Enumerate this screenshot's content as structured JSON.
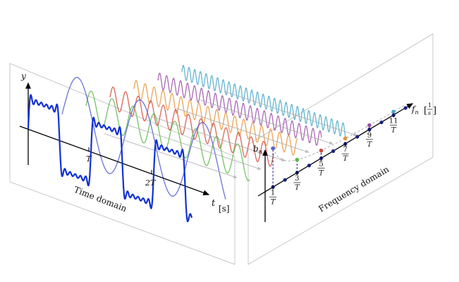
{
  "labels": {
    "y_axis": "y",
    "t_axis_var": "t",
    "t_axis_unit": "[s]",
    "time_tick_1": "T",
    "time_tick_2": "2T",
    "time_panel": "Time domain",
    "freq_panel": "Frequency domain",
    "b_axis": "b",
    "b_axis_sub": "n",
    "f_axis": "f",
    "f_axis_sub": "n",
    "f_unit_num": "1",
    "f_unit_den": "s"
  },
  "freq_ticks": [
    {
      "num": "1",
      "den": "T"
    },
    {
      "num": "3",
      "den": "T"
    },
    {
      "num": "5",
      "den": "T"
    },
    {
      "num": "7",
      "den": "T"
    },
    {
      "num": "9",
      "den": "T"
    },
    {
      "num": "11",
      "den": "T"
    }
  ],
  "harmonics": [
    {
      "n": 1,
      "color": "#5a64d2"
    },
    {
      "n": 3,
      "color": "#5cb84a"
    },
    {
      "n": 5,
      "color": "#d24a3c"
    },
    {
      "n": 7,
      "color": "#e8953a"
    },
    {
      "n": 9,
      "color": "#9a50a8"
    },
    {
      "n": 11,
      "color": "#4aa8c8"
    }
  ],
  "colors": {
    "square_wave": "#1232d2",
    "spectrum_dot": "#1a237e",
    "panel_border": "#bbbbbb",
    "projection": "#aaaaaa"
  }
}
